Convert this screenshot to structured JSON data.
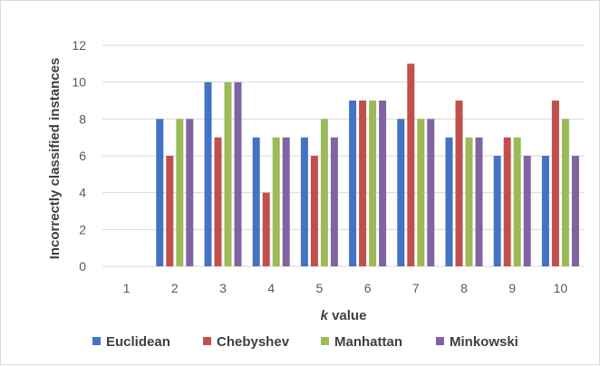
{
  "chart_data": {
    "type": "bar",
    "categories": [
      "1",
      "2",
      "3",
      "4",
      "5",
      "6",
      "7",
      "8",
      "9",
      "10"
    ],
    "series": [
      {
        "name": "Euclidean",
        "color": "#4472C4",
        "values": [
          0,
          8,
          10,
          7,
          7,
          9,
          8,
          7,
          6,
          6
        ]
      },
      {
        "name": "Chebyshev",
        "color": "#C0504D",
        "values": [
          0,
          6,
          7,
          4,
          6,
          9,
          11,
          9,
          7,
          9
        ]
      },
      {
        "name": "Manhattan",
        "color": "#9BBB59",
        "values": [
          0,
          8,
          10,
          7,
          8,
          9,
          8,
          7,
          7,
          8
        ]
      },
      {
        "name": "Minkowski",
        "color": "#8064A2",
        "values": [
          0,
          8,
          10,
          7,
          7,
          9,
          8,
          7,
          6,
          6
        ]
      }
    ],
    "xlabel_italic": "k",
    "xlabel_rest": " value",
    "ylabel": "Incorrectly classified instances",
    "ylim": [
      0,
      12
    ],
    "yticks": [
      "0",
      "2",
      "4",
      "6",
      "8",
      "10",
      "12"
    ],
    "legend_position": "bottom",
    "grid": true,
    "gridline_color": "#d9d9d9"
  }
}
